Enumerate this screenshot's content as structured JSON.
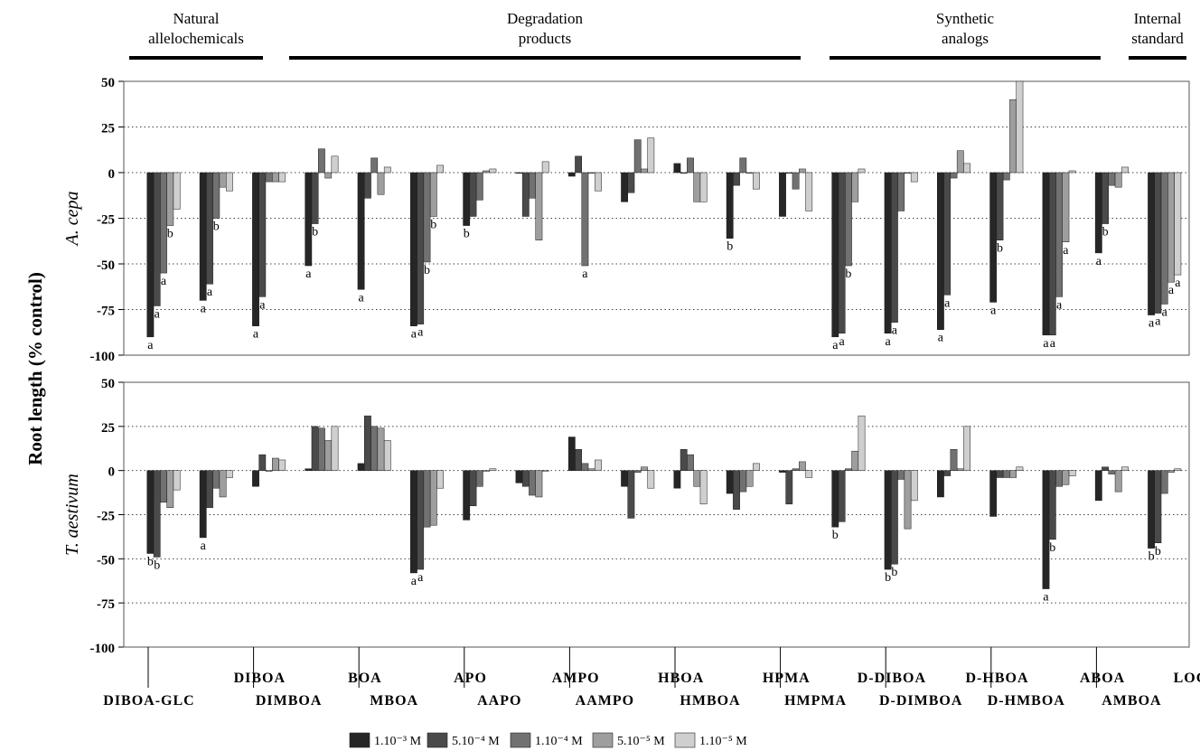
{
  "ylabel": "Root length (% control)",
  "groups": [
    {
      "label_lines": [
        "Natural",
        "allelochemicals"
      ],
      "from": 0,
      "to": 2
    },
    {
      "label_lines": [
        "Degradation",
        "products"
      ],
      "from": 3,
      "to": 8
    },
    {
      "label_lines": [
        "Synthetic",
        "analogs"
      ],
      "from": 9,
      "to": 11
    },
    {
      "label_lines": [
        "Internal",
        "standard"
      ],
      "from": 12,
      "to": 12
    }
  ],
  "legend": [
    "1.10⁻³ M",
    "5.10⁻⁴ M",
    "1.10⁻⁴ M",
    "5.10⁻⁵ M",
    "1.10⁻⁵ M"
  ],
  "chart_data": [
    {
      "type": "bar",
      "panel_label": "A. cepa",
      "ylim": [
        -100,
        50
      ],
      "yticks": [
        50,
        25,
        0,
        -25,
        -50,
        -75,
        -100
      ],
      "grid": "dotted-horizontal",
      "categories": [
        "DIBOA-GLC",
        "DIBOA",
        "DIMBOA",
        "BOA",
        "MBOA",
        "APO",
        "AAPO",
        "AMPO",
        "AAMPO",
        "HBOA",
        "HMBOA",
        "HPMA",
        "HMPMA",
        "D-DIBOA",
        "D-DIMBOA",
        "D-HBOA",
        "D-HMBOA",
        "ABOA",
        "AMBOA",
        "LOGRAN"
      ],
      "series": [
        {
          "name": "1.10⁻³ M",
          "color": "#262626",
          "values": [
            -90,
            -70,
            -84,
            -51,
            -64,
            -84,
            -29,
            0,
            -2,
            -16,
            5,
            -36,
            -24,
            -90,
            -88,
            -86,
            -71,
            -89,
            -44,
            -78
          ]
        },
        {
          "name": "5.10⁻⁴ M",
          "color": "#4a4a4a",
          "values": [
            -73,
            -61,
            -68,
            -28,
            -14,
            -83,
            -24,
            -24,
            9,
            -11,
            0,
            -7,
            0,
            -88,
            -82,
            -67,
            -37,
            -89,
            -28,
            -77
          ]
        },
        {
          "name": "1.10⁻⁴ M",
          "color": "#717171",
          "values": [
            -55,
            -25,
            -5,
            13,
            8,
            -49,
            -15,
            -14,
            -51,
            18,
            8,
            8,
            -9,
            -51,
            -21,
            -3,
            -4,
            -68,
            -7,
            -72
          ]
        },
        {
          "name": "5.10⁻⁵ M",
          "color": "#9e9e9e",
          "values": [
            -29,
            -8,
            -5,
            -3,
            -12,
            -24,
            1,
            -37,
            0,
            2,
            -16,
            0,
            2,
            -16,
            0,
            12,
            40,
            -38,
            -8,
            -60
          ]
        },
        {
          "name": "1.10⁻⁵ M",
          "color": "#cfcfcf",
          "values": [
            -20,
            -10,
            -5,
            9,
            3,
            4,
            2,
            6,
            -10,
            19,
            -16,
            -9,
            -21,
            2,
            -5,
            5,
            50,
            1,
            3,
            -56
          ]
        }
      ],
      "annotations": [
        [
          "a",
          "a",
          "a",
          "b",
          null
        ],
        [
          "a",
          "a",
          "b",
          null,
          null
        ],
        [
          "a",
          "a",
          null,
          null,
          null
        ],
        [
          "a",
          "b",
          null,
          null,
          null
        ],
        [
          "a",
          null,
          null,
          null,
          null
        ],
        [
          "a",
          "a",
          "b",
          "b",
          null
        ],
        [
          "b",
          null,
          null,
          null,
          null
        ],
        [
          null,
          null,
          null,
          null,
          null
        ],
        [
          null,
          null,
          "a",
          null,
          null
        ],
        [
          null,
          null,
          null,
          null,
          null
        ],
        [
          null,
          null,
          null,
          null,
          null
        ],
        [
          "b",
          null,
          null,
          null,
          null
        ],
        [
          null,
          null,
          null,
          null,
          null
        ],
        [
          "a",
          "a",
          "b",
          null,
          null
        ],
        [
          "a",
          "a",
          null,
          null,
          null
        ],
        [
          "a",
          "a",
          null,
          null,
          null
        ],
        [
          "a",
          "b",
          null,
          null,
          null
        ],
        [
          "a",
          "a",
          "a",
          "a",
          null
        ],
        [
          "a",
          "b",
          null,
          null,
          null
        ],
        [
          "a",
          "a",
          "a",
          "a",
          "a"
        ]
      ]
    },
    {
      "type": "bar",
      "panel_label": "T. aestivum",
      "ylim": [
        -100,
        50
      ],
      "yticks": [
        50,
        25,
        0,
        -25,
        -50,
        -75,
        -100
      ],
      "grid": "dotted-horizontal",
      "categories": [
        "DIBOA-GLC",
        "DIBOA",
        "DIMBOA",
        "BOA",
        "MBOA",
        "APO",
        "AAPO",
        "AMPO",
        "AAMPO",
        "HBOA",
        "HMBOA",
        "HPMA",
        "HMPMA",
        "D-DIBOA",
        "D-DIMBOA",
        "D-HBOA",
        "D-HMBOA",
        "ABOA",
        "AMBOA",
        "LOGRAN"
      ],
      "series": [
        {
          "name": "1.10⁻³ M",
          "color": "#262626",
          "values": [
            -47,
            -38,
            -9,
            1,
            4,
            -58,
            -28,
            -7,
            19,
            -9,
            -10,
            -13,
            -1,
            -32,
            -56,
            -15,
            -26,
            -67,
            -17,
            -44
          ]
        },
        {
          "name": "5.10⁻⁴ M",
          "color": "#4a4a4a",
          "values": [
            -49,
            -21,
            9,
            25,
            31,
            -56,
            -20,
            -9,
            12,
            -27,
            12,
            -22,
            -19,
            -29,
            -53,
            -3,
            -4,
            -39,
            2,
            -41
          ]
        },
        {
          "name": "1.10⁻⁴ M",
          "color": "#717171",
          "values": [
            -18,
            -10,
            0,
            24,
            25,
            -32,
            -9,
            -14,
            4,
            -1,
            9,
            -12,
            1,
            1,
            -5,
            12,
            -4,
            -9,
            -2,
            -13
          ]
        },
        {
          "name": "5.10⁻⁵ M",
          "color": "#9e9e9e",
          "values": [
            -21,
            -15,
            7,
            17,
            24,
            -31,
            0,
            -15,
            1,
            2,
            -9,
            -9,
            5,
            11,
            -33,
            1,
            -4,
            -8,
            -12,
            -1
          ]
        },
        {
          "name": "1.10⁻⁵ M",
          "color": "#cfcfcf",
          "values": [
            -11,
            -4,
            6,
            25,
            17,
            -10,
            1,
            0,
            6,
            -10,
            -19,
            4,
            -4,
            31,
            -17,
            25,
            2,
            -3,
            2,
            1
          ]
        }
      ],
      "annotations": [
        [
          "b",
          "b",
          null,
          null,
          null
        ],
        [
          "a",
          null,
          null,
          null,
          null
        ],
        [
          null,
          null,
          null,
          null,
          null
        ],
        [
          null,
          null,
          null,
          null,
          null
        ],
        [
          null,
          null,
          null,
          null,
          null
        ],
        [
          "a",
          "a",
          null,
          null,
          null
        ],
        [
          null,
          null,
          null,
          null,
          null
        ],
        [
          null,
          null,
          null,
          null,
          null
        ],
        [
          null,
          null,
          null,
          null,
          null
        ],
        [
          null,
          null,
          null,
          null,
          null
        ],
        [
          null,
          null,
          null,
          null,
          null
        ],
        [
          null,
          null,
          null,
          null,
          null
        ],
        [
          null,
          null,
          null,
          null,
          null
        ],
        [
          "b",
          null,
          null,
          null,
          null
        ],
        [
          "b",
          "b",
          null,
          null,
          null
        ],
        [
          null,
          null,
          null,
          null,
          null
        ],
        [
          null,
          null,
          null,
          null,
          null
        ],
        [
          "a",
          "b",
          null,
          null,
          null
        ],
        [
          null,
          null,
          null,
          null,
          null
        ],
        [
          "b",
          "b",
          null,
          null,
          null
        ]
      ]
    }
  ]
}
